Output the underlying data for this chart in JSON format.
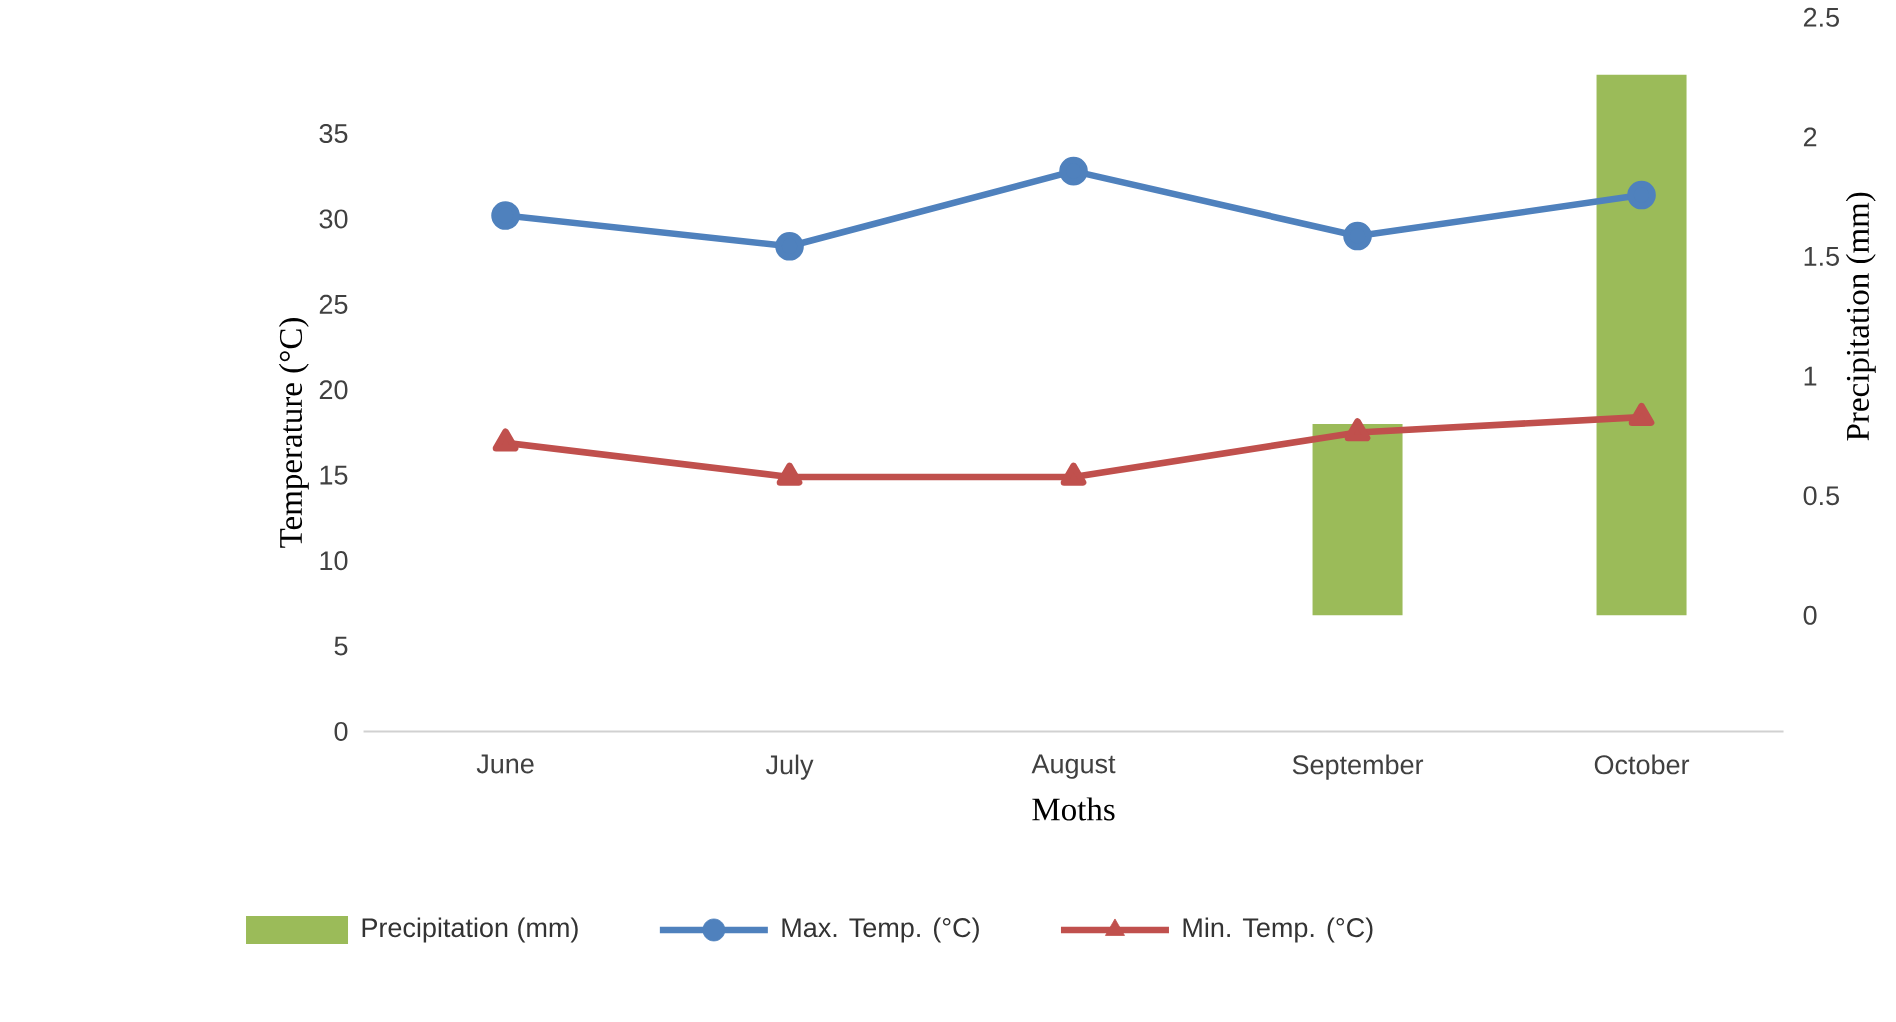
{
  "chart_data": {
    "type": "line",
    "xlabel": "Moths",
    "ylabel": "Temperature (°C)",
    "y2label": "Precipitation (mm)",
    "categories": [
      "June",
      "July",
      "August",
      "September",
      "October"
    ],
    "ylim": [
      0,
      35
    ],
    "yticks": [
      0,
      5,
      10,
      15,
      20,
      25,
      30,
      35
    ],
    "y2lim": [
      0,
      2.5
    ],
    "y2ticks": [
      0,
      0.5,
      1,
      1.5,
      2,
      2.5
    ],
    "legend": "bottom",
    "series": [
      {
        "name": "Precipitation (mm)",
        "type": "bar",
        "axis": "y2",
        "color": "#9bbb59",
        "values": [
          0,
          0,
          0,
          0.8,
          2.26
        ]
      },
      {
        "name": "Max. Temp. (°C)",
        "marker": "circle",
        "color": "#4f81bd",
        "values": [
          30.2,
          28.4,
          32.8,
          29.0,
          31.4
        ]
      },
      {
        "name": "Min. Temp. (°C)",
        "marker": "triangle",
        "color": "#c0504d",
        "values": [
          16.9,
          14.9,
          14.9,
          17.5,
          18.4
        ]
      }
    ]
  }
}
